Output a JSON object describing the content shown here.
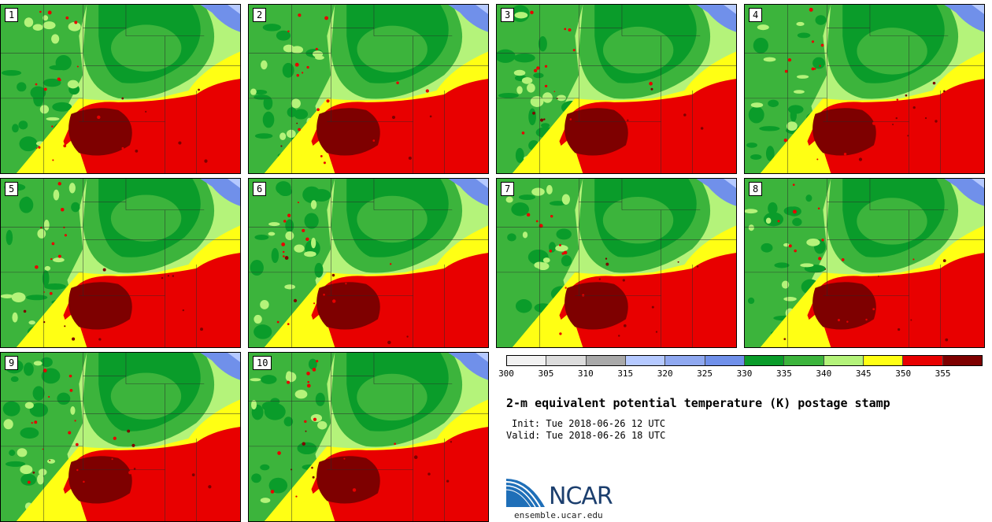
{
  "panels": [
    {
      "label": "1"
    },
    {
      "label": "2"
    },
    {
      "label": "3"
    },
    {
      "label": "4"
    },
    {
      "label": "5"
    },
    {
      "label": "6"
    },
    {
      "label": "7"
    },
    {
      "label": "8"
    },
    {
      "label": "9"
    },
    {
      "label": "10"
    }
  ],
  "colorbar": {
    "colors": [
      "#f2f2f2",
      "#dcdcdc",
      "#a9a9a9",
      "#b5c9ff",
      "#8fa8f0",
      "#7090ea",
      "#0a9c2a",
      "#3cb43c",
      "#b4f37a",
      "#ffff14",
      "#e80000",
      "#7e0000"
    ],
    "ticks": [
      "300",
      "305",
      "310",
      "315",
      "320",
      "325",
      "330",
      "335",
      "340",
      "345",
      "350",
      "355"
    ]
  },
  "title": "2-m equivalent potential temperature (K) postage stamp",
  "init": "Init: Tue 2018-06-26 12 UTC",
  "valid": "Valid: Tue 2018-06-26 18 UTC",
  "logo": {
    "text": "NCAR",
    "website": "ensemble.ucar.edu"
  }
}
